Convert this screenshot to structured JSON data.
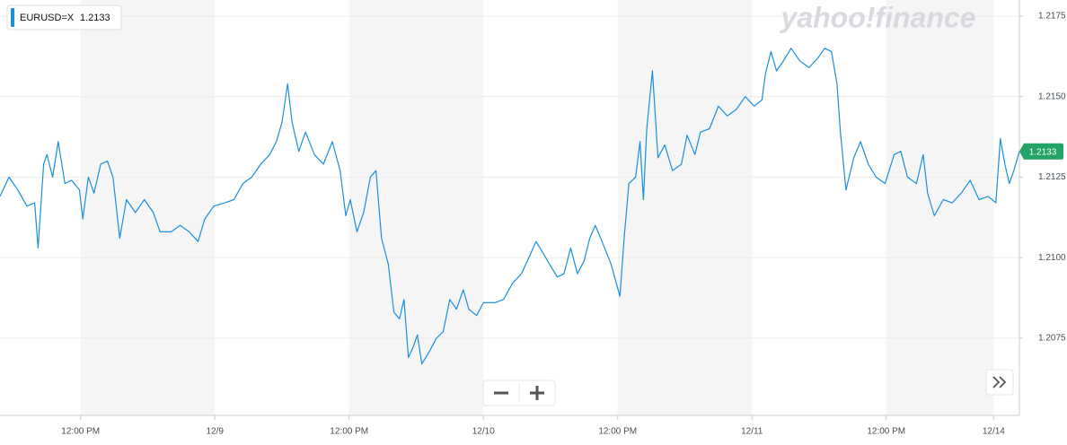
{
  "chart_data": {
    "type": "line",
    "brand": "yahoo!finance",
    "last_value": 1.2133,
    "x": [
      4.8,
      5.6,
      6.4,
      7.2,
      7.9,
      8.2,
      8.7,
      9.0,
      9.5,
      10.0,
      10.6,
      11.2,
      11.9,
      12.2,
      12.7,
      13.2,
      13.8,
      14.4,
      14.9,
      15.5,
      16.1,
      16.9,
      17.7,
      18.5,
      19.1,
      20.1,
      20.9,
      21.7,
      22.5,
      23.1,
      23.9,
      24.9,
      25.7,
      26.5,
      27.3,
      28.1,
      28.9,
      29.5,
      30.0,
      30.5,
      30.9,
      31.5,
      32.1,
      32.9,
      33.7,
      34.5,
      35.2,
      35.7,
      36.1,
      36.7,
      37.3,
      37.9,
      38.4,
      38.9,
      39.5,
      40.0,
      40.5,
      40.9,
      41.3,
      41.7,
      42.1,
      42.5,
      43.2,
      43.8,
      44.4,
      45.0,
      45.6,
      46.2,
      46.7,
      47.4,
      48.0,
      49.0,
      49.8,
      50.6,
      51.4,
      52.2,
      52.7,
      53.4,
      53.9,
      54.6,
      55.2,
      55.8,
      56.4,
      57.0,
      57.5,
      58.0,
      58.6,
      59.4,
      60.2,
      60.6,
      61.0,
      61.6,
      62.0,
      62.3,
      62.6,
      63.1,
      63.6,
      64.2,
      64.9,
      65.7,
      66.2,
      66.9,
      67.4,
      68.2,
      69.0,
      69.8,
      70.6,
      71.4,
      72.2,
      72.9,
      73.2,
      73.7,
      74.2,
      74.8,
      75.5,
      76.3,
      77.1,
      77.9,
      78.5,
      79.1,
      79.6,
      79.9,
      80.4,
      81.1,
      81.7,
      82.4,
      83.1,
      83.9,
      84.7,
      85.3,
      85.9,
      86.7,
      87.3,
      87.7,
      88.3,
      89.1,
      89.9,
      90.7,
      91.5,
      92.3,
      93.1,
      93.8,
      94.2,
      94.6,
      95.0,
      95.4,
      95.9
    ],
    "series": [
      {
        "name": "EURUSD=X",
        "color": "#1a8fdd",
        "values": [
          1.2119,
          1.2125,
          1.2121,
          1.2116,
          1.2117,
          1.2103,
          1.2129,
          1.2132,
          1.2125,
          1.2136,
          1.2123,
          1.2124,
          1.2121,
          1.2112,
          1.2125,
          1.212,
          1.2129,
          1.213,
          1.2125,
          1.2106,
          1.2118,
          1.2114,
          1.2118,
          1.2114,
          1.2108,
          1.2108,
          1.211,
          1.2108,
          1.2105,
          1.2112,
          1.2116,
          1.2117,
          1.2118,
          1.2123,
          1.2125,
          1.2129,
          1.2132,
          1.2136,
          1.2142,
          1.2154,
          1.2142,
          1.2133,
          1.2139,
          1.2132,
          1.2129,
          1.2136,
          1.2127,
          1.2113,
          1.2118,
          1.2108,
          1.2114,
          1.2125,
          1.2127,
          1.2106,
          1.2098,
          1.2083,
          1.2081,
          1.2087,
          1.2069,
          1.2072,
          1.2076,
          1.2067,
          1.2071,
          1.2075,
          1.2077,
          1.2087,
          1.2084,
          1.209,
          1.2084,
          1.2082,
          1.2086,
          1.2086,
          1.2087,
          1.2092,
          1.2095,
          1.2101,
          1.2105,
          1.2101,
          1.2098,
          1.2094,
          1.2095,
          1.2103,
          1.2095,
          1.2099,
          1.2106,
          1.211,
          1.2105,
          1.2098,
          1.2088,
          1.2107,
          1.2123,
          1.2125,
          1.2136,
          1.2118,
          1.214,
          1.2158,
          1.2131,
          1.2135,
          1.2127,
          1.2129,
          1.2138,
          1.2132,
          1.2139,
          1.214,
          1.2147,
          1.2144,
          1.2146,
          1.215,
          1.2147,
          1.2149,
          1.2157,
          1.2164,
          1.2158,
          1.2161,
          1.2165,
          1.2161,
          1.2159,
          1.2162,
          1.2165,
          1.2164,
          1.2154,
          1.2139,
          1.2121,
          1.2131,
          1.2136,
          1.2129,
          1.2125,
          1.2123,
          1.2132,
          1.2133,
          1.2125,
          1.2123,
          1.2132,
          1.212,
          1.2113,
          1.2118,
          1.2117,
          1.212,
          1.2124,
          1.2118,
          1.2119,
          1.2117,
          1.2137,
          1.2129,
          1.2123,
          1.2127,
          1.2133
        ]
      }
    ],
    "xlim": [
      4.8,
      95.9
    ],
    "xticks": [
      {
        "value": 12,
        "label": "12:00 PM"
      },
      {
        "value": 24,
        "label": "12/9"
      },
      {
        "value": 36,
        "label": "12:00 PM"
      },
      {
        "value": 48,
        "label": "12/10"
      },
      {
        "value": 60,
        "label": "12:00 PM"
      },
      {
        "value": 72,
        "label": "12/11"
      },
      {
        "value": 84,
        "label": "12:00 PM"
      },
      {
        "value": 93.6,
        "label": "12/14"
      }
    ],
    "ylim": [
      1.2051,
      1.218
    ],
    "yticks": [
      1.2075,
      {
        "value": 1.21,
        "label": "1.2100"
      },
      1.2125,
      {
        "value": 1.215,
        "label": "1.2150"
      },
      1.2175
    ],
    "grid": true
  }
}
